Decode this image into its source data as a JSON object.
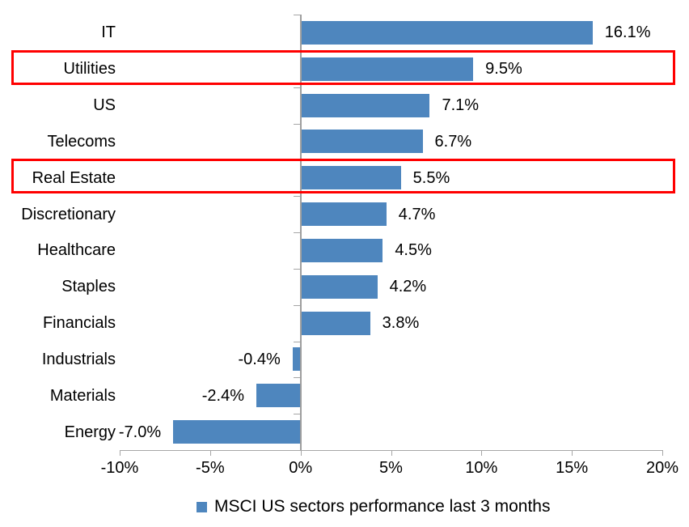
{
  "chart_data": {
    "type": "bar",
    "orientation": "horizontal",
    "title": "",
    "categories": [
      "IT",
      "Utilities",
      "US",
      "Telecoms",
      "Real Estate",
      "Discretionary",
      "Healthcare",
      "Staples",
      "Financials",
      "Industrials",
      "Materials",
      "Energy"
    ],
    "values": [
      16.1,
      9.5,
      7.1,
      6.7,
      5.5,
      4.7,
      4.5,
      4.2,
      3.8,
      -0.4,
      -2.4,
      -7.0
    ],
    "value_labels": [
      "16.1%",
      "9.5%",
      "7.1%",
      "6.7%",
      "5.5%",
      "4.7%",
      "4.5%",
      "4.2%",
      "3.8%",
      "-0.4%",
      "-2.4%",
      "-7.0%"
    ],
    "highlighted_categories": [
      "Utilities",
      "Real Estate"
    ],
    "x_axis": {
      "min": -10,
      "max": 20,
      "tick_values": [
        -10,
        -5,
        0,
        5,
        10,
        15,
        20
      ],
      "tick_labels": [
        "-10%",
        "-5%",
        "0%",
        "5%",
        "10%",
        "15%",
        "20%"
      ]
    },
    "grid": false,
    "legend": "MSCI US sectors performance last 3 months",
    "legend_position": "bottom",
    "colors": {
      "bar": "#4E86BE",
      "highlight_box": "#FF0000",
      "axis": "#A6A6A6",
      "zero_line": "#9E9E9E",
      "text": "#000000"
    }
  }
}
